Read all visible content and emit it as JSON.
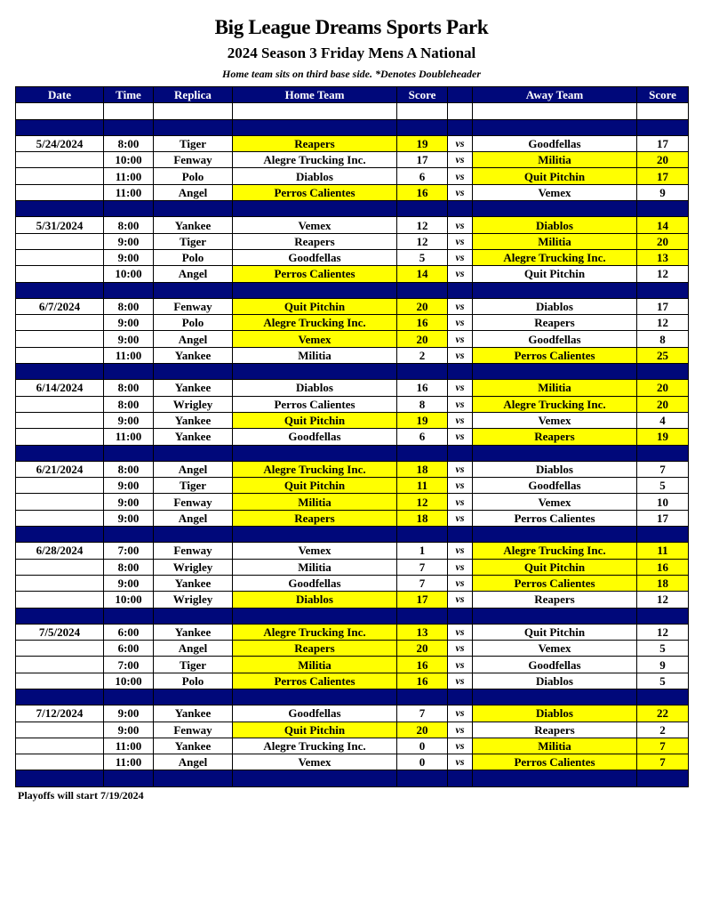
{
  "title": "Big League Dreams Sports Park",
  "subtitle": "2024 Season 3 Friday Mens A National",
  "note": "Home team sits on third base side.  *Denotes Doubleheader",
  "columns": [
    "Date",
    "Time",
    "Replica",
    "Home Team",
    "Score",
    "",
    "Away Team",
    "Score"
  ],
  "vs_label": "vs",
  "highlight_color": "#ffff00",
  "header_color": "#00087a",
  "weeks": [
    {
      "date": "5/24/2024",
      "games": [
        {
          "time": "8:00",
          "replica": "Tiger",
          "home": "Reapers",
          "home_score": "19",
          "away": "Goodfellas",
          "away_score": "17"
        },
        {
          "time": "10:00",
          "replica": "Fenway",
          "home": "Alegre Trucking Inc.",
          "home_score": "17",
          "away": "Militia",
          "away_score": "20"
        },
        {
          "time": "11:00",
          "replica": "Polo",
          "home": "Diablos",
          "home_score": "6",
          "away": "Quit Pitchin",
          "away_score": "17"
        },
        {
          "time": "11:00",
          "replica": "Angel",
          "home": "Perros Calientes",
          "home_score": "16",
          "away": "Vemex",
          "away_score": "9"
        }
      ]
    },
    {
      "date": "5/31/2024",
      "games": [
        {
          "time": "8:00",
          "replica": "Yankee",
          "home": "Vemex",
          "home_score": "12",
          "away": "Diablos",
          "away_score": "14"
        },
        {
          "time": "9:00",
          "replica": "Tiger",
          "home": "Reapers",
          "home_score": "12",
          "away": "Militia",
          "away_score": "20"
        },
        {
          "time": "9:00",
          "replica": "Polo",
          "home": "Goodfellas",
          "home_score": "5",
          "away": "Alegre Trucking Inc.",
          "away_score": "13"
        },
        {
          "time": "10:00",
          "replica": "Angel",
          "home": "Perros Calientes",
          "home_score": "14",
          "away": "Quit Pitchin",
          "away_score": "12"
        }
      ]
    },
    {
      "date": "6/7/2024",
      "games": [
        {
          "time": "8:00",
          "replica": "Fenway",
          "home": "Quit Pitchin",
          "home_score": "20",
          "away": "Diablos",
          "away_score": "17"
        },
        {
          "time": "9:00",
          "replica": "Polo",
          "home": "Alegre Trucking Inc.",
          "home_score": "16",
          "away": "Reapers",
          "away_score": "12"
        },
        {
          "time": "9:00",
          "replica": "Angel",
          "home": "Vemex",
          "home_score": "20",
          "away": "Goodfellas",
          "away_score": "8"
        },
        {
          "time": "11:00",
          "replica": "Yankee",
          "home": "Militia",
          "home_score": "2",
          "away": "Perros Calientes",
          "away_score": "25"
        }
      ]
    },
    {
      "date": "6/14/2024",
      "games": [
        {
          "time": "8:00",
          "replica": "Yankee",
          "home": "Diablos",
          "home_score": "16",
          "away": "Militia",
          "away_score": "20"
        },
        {
          "time": "8:00",
          "replica": "Wrigley",
          "home": "Perros Calientes",
          "home_score": "8",
          "away": "Alegre Trucking Inc.",
          "away_score": "20"
        },
        {
          "time": "9:00",
          "replica": "Yankee",
          "home": "Quit Pitchin",
          "home_score": "19",
          "away": "Vemex",
          "away_score": "4"
        },
        {
          "time": "11:00",
          "replica": "Yankee",
          "home": "Goodfellas",
          "home_score": "6",
          "away": "Reapers",
          "away_score": "19"
        }
      ]
    },
    {
      "date": "6/21/2024",
      "games": [
        {
          "time": "8:00",
          "replica": "Angel",
          "home": "Alegre Trucking Inc.",
          "home_score": "18",
          "away": "Diablos",
          "away_score": "7"
        },
        {
          "time": "9:00",
          "replica": "Tiger",
          "home": "Quit Pitchin",
          "home_score": "11",
          "away": "Goodfellas",
          "away_score": "5"
        },
        {
          "time": "9:00",
          "replica": "Fenway",
          "home": "Militia",
          "home_score": "12",
          "away": "Vemex",
          "away_score": "10"
        },
        {
          "time": "9:00",
          "replica": "Angel",
          "home": "Reapers",
          "home_score": "18",
          "away": "Perros Calientes",
          "away_score": "17"
        }
      ]
    },
    {
      "date": "6/28/2024",
      "games": [
        {
          "time": "7:00",
          "replica": "Fenway",
          "home": "Vemex",
          "home_score": "1",
          "away": "Alegre Trucking Inc.",
          "away_score": "11"
        },
        {
          "time": "8:00",
          "replica": "Wrigley",
          "home": "Militia",
          "home_score": "7",
          "away": "Quit Pitchin",
          "away_score": "16"
        },
        {
          "time": "9:00",
          "replica": "Yankee",
          "home": "Goodfellas",
          "home_score": "7",
          "away": "Perros Calientes",
          "away_score": "18"
        },
        {
          "time": "10:00",
          "replica": "Wrigley",
          "home": "Diablos",
          "home_score": "17",
          "away": "Reapers",
          "away_score": "12"
        }
      ]
    },
    {
      "date": "7/5/2024",
      "games": [
        {
          "time": "6:00",
          "replica": "Yankee",
          "home": "Alegre Trucking Inc.",
          "home_score": "13",
          "away": "Quit Pitchin",
          "away_score": "12"
        },
        {
          "time": "6:00",
          "replica": "Angel",
          "home": "Reapers",
          "home_score": "20",
          "away": "Vemex",
          "away_score": "5"
        },
        {
          "time": "7:00",
          "replica": "Tiger",
          "home": "Militia",
          "home_score": "16",
          "away": "Goodfellas",
          "away_score": "9"
        },
        {
          "time": "10:00",
          "replica": "Polo",
          "home": "Perros Calientes",
          "home_score": "16",
          "away": "Diablos",
          "away_score": "5"
        }
      ]
    },
    {
      "date": "7/12/2024",
      "games": [
        {
          "time": "9:00",
          "replica": "Yankee",
          "home": "Goodfellas",
          "home_score": "7",
          "away": "Diablos",
          "away_score": "22"
        },
        {
          "time": "9:00",
          "replica": "Fenway",
          "home": "Quit Pitchin",
          "home_score": "20",
          "away": "Reapers",
          "away_score": "2"
        },
        {
          "time": "11:00",
          "replica": "Yankee",
          "home": "Alegre Trucking Inc.",
          "home_score": "0",
          "away": "Militia",
          "away_score": "7"
        },
        {
          "time": "11:00",
          "replica": "Angel",
          "home": "Vemex",
          "home_score": "0",
          "away": "Perros Calientes",
          "away_score": "7"
        }
      ]
    }
  ],
  "footer": "Playoffs will start 7/19/2024"
}
